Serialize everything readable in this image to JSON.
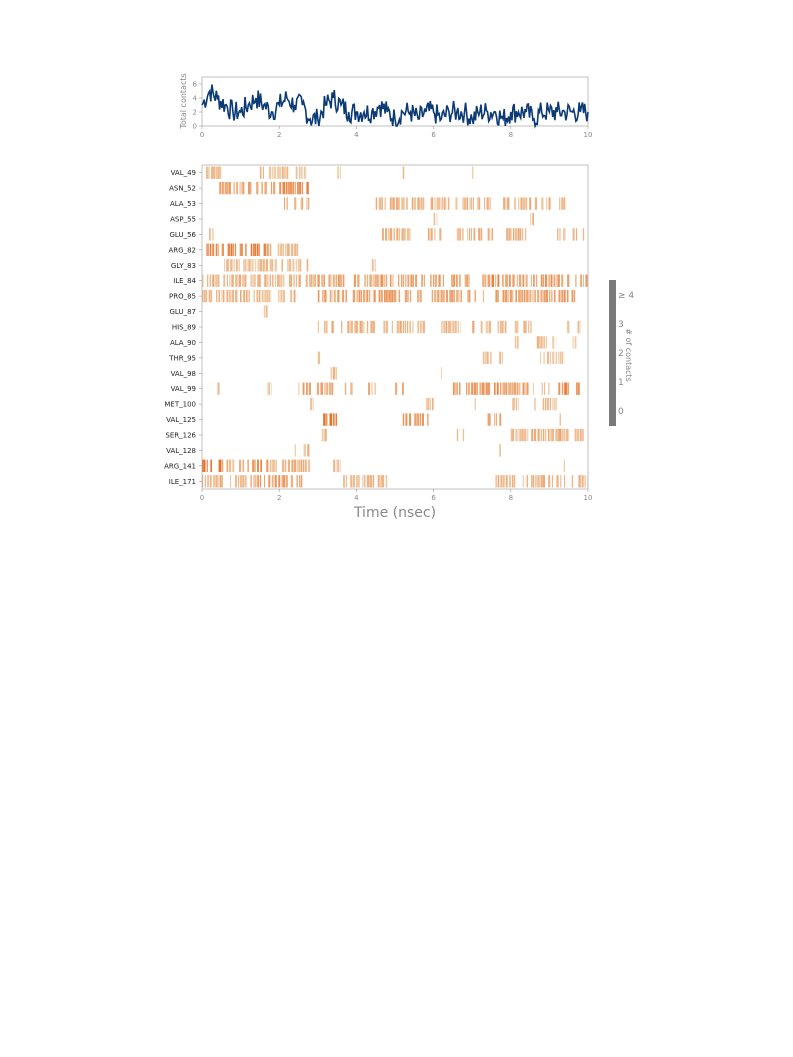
{
  "chart_data": [
    {
      "type": "line",
      "ylabel": "Total contacts",
      "xlim": [
        0,
        10
      ],
      "ylim": [
        0,
        7
      ],
      "xticks": [
        "0",
        "2",
        "4",
        "6",
        "8",
        "10"
      ],
      "yticks": [
        "0",
        "2",
        "4",
        "6"
      ],
      "line_color": "#0b3a75",
      "series": [
        {
          "x": [
            0.0,
            0.2,
            0.4,
            0.6,
            0.8,
            1.0,
            1.2,
            1.4,
            1.6,
            1.8,
            2.0,
            2.2,
            2.4,
            2.6,
            2.8,
            3.0,
            3.2,
            3.4,
            3.6,
            3.8,
            4.0,
            4.2,
            4.4,
            4.6,
            4.8,
            5.0,
            5.2,
            5.4,
            5.6,
            5.8,
            6.0,
            6.2,
            6.4,
            6.6,
            6.8,
            7.0,
            7.2,
            7.4,
            7.6,
            7.8,
            8.0,
            8.2,
            8.4,
            8.6,
            8.8,
            9.0,
            9.2,
            9.4,
            9.6,
            9.8,
            10.0
          ],
          "values": [
            3,
            5,
            4,
            3,
            2,
            2,
            3,
            4,
            3,
            2,
            3,
            4,
            3,
            3,
            1,
            1,
            3,
            4,
            3,
            2,
            2,
            2,
            2,
            3,
            2,
            1,
            2,
            2,
            1,
            2,
            2,
            1,
            2,
            2,
            2,
            1,
            2,
            2,
            2,
            1,
            2,
            2,
            2,
            1,
            2,
            2,
            2,
            2,
            2,
            2,
            2
          ]
        }
      ]
    },
    {
      "type": "heatmap",
      "xlabel": "Time (nsec)",
      "xlim": [
        0,
        10
      ],
      "xticks": [
        "0",
        "2",
        "4",
        "6",
        "8",
        "10"
      ],
      "rows": [
        "VAL_49",
        "ASN_52",
        "ALA_53",
        "ASP_55",
        "GLU_56",
        "ARG_82",
        "GLY_83",
        "ILE_84",
        "PRO_85",
        "GLU_87",
        "HIS_89",
        "ALA_90",
        "THR_95",
        "VAL_98",
        "VAL_99",
        "MET_100",
        "VAL_125",
        "SER_126",
        "VAL_128",
        "ARG_141",
        "ILE_171"
      ],
      "segments": [
        [
          [
            0.1,
            0.5,
            0.3
          ],
          [
            1.5,
            2.7,
            0.2
          ],
          [
            3.5,
            3.6,
            0.2
          ],
          [
            5.2,
            5.3,
            0.2
          ],
          [
            7.0,
            7.1,
            0.2
          ]
        ],
        [
          [
            0.4,
            2.0,
            0.5
          ],
          [
            2.0,
            2.8,
            0.8
          ]
        ],
        [
          [
            2.0,
            2.8,
            0.3
          ],
          [
            4.5,
            7.5,
            0.3
          ],
          [
            7.8,
            9.5,
            0.3
          ]
        ],
        [
          [
            6.0,
            6.1,
            0.2
          ],
          [
            8.5,
            8.6,
            0.2
          ]
        ],
        [
          [
            0.1,
            0.3,
            0.2
          ],
          [
            4.6,
            5.4,
            0.3
          ],
          [
            5.8,
            6.2,
            0.3
          ],
          [
            6.6,
            7.7,
            0.3
          ],
          [
            7.8,
            8.4,
            0.3
          ],
          [
            9.2,
            9.9,
            0.3
          ]
        ],
        [
          [
            0.0,
            1.7,
            0.8
          ],
          [
            1.7,
            2.5,
            0.3
          ]
        ],
        [
          [
            0.5,
            2.8,
            0.2
          ],
          [
            4.4,
            4.5,
            0.2
          ]
        ],
        [
          [
            0.0,
            3.0,
            0.3
          ],
          [
            3.0,
            7.4,
            0.5
          ],
          [
            7.4,
            7.9,
            0.7
          ],
          [
            7.9,
            10.0,
            0.5
          ]
        ],
        [
          [
            0.0,
            2.5,
            0.3
          ],
          [
            3.0,
            4.8,
            0.5
          ],
          [
            4.8,
            7.0,
            0.5
          ],
          [
            7.0,
            7.4,
            0.3
          ],
          [
            7.6,
            9.8,
            0.5
          ]
        ],
        [
          [
            1.6,
            1.7,
            0.2
          ]
        ],
        [
          [
            3.0,
            4.5,
            0.3
          ],
          [
            4.7,
            5.9,
            0.3
          ],
          [
            6.2,
            6.7,
            0.3
          ],
          [
            7.0,
            7.9,
            0.3
          ],
          [
            8.1,
            8.8,
            0.3
          ],
          [
            9.4,
            9.8,
            0.3
          ]
        ],
        [
          [
            8.1,
            8.2,
            0.2
          ],
          [
            8.6,
            9.2,
            0.2
          ],
          [
            9.6,
            9.7,
            0.2
          ]
        ],
        [
          [
            3.0,
            3.1,
            0.2
          ],
          [
            6.7,
            6.8,
            0.2
          ],
          [
            7.2,
            7.5,
            0.2
          ],
          [
            7.7,
            7.8,
            0.2
          ],
          [
            8.7,
            9.4,
            0.2
          ]
        ],
        [
          [
            3.3,
            3.5,
            0.2
          ],
          [
            6.1,
            6.3,
            0.2
          ]
        ],
        [
          [
            0.4,
            0.5,
            0.2
          ],
          [
            1.7,
            1.8,
            0.2
          ],
          [
            2.5,
            3.4,
            0.5
          ],
          [
            3.7,
            3.9,
            0.3
          ],
          [
            4.3,
            4.5,
            0.3
          ],
          [
            5.0,
            5.4,
            0.3
          ],
          [
            6.5,
            7.4,
            0.5
          ],
          [
            7.4,
            7.8,
            0.7
          ],
          [
            7.8,
            8.6,
            0.5
          ],
          [
            8.8,
            9.4,
            0.5
          ],
          [
            9.4,
            9.9,
            0.8
          ]
        ],
        [
          [
            1.6,
            1.7,
            0.2
          ],
          [
            2.8,
            2.9,
            0.2
          ],
          [
            5.8,
            6.0,
            0.2
          ],
          [
            7.0,
            7.1,
            0.2
          ],
          [
            8.0,
            8.2,
            0.2
          ],
          [
            8.6,
            9.2,
            0.2
          ]
        ],
        [
          [
            3.1,
            3.5,
            0.9
          ],
          [
            5.2,
            5.9,
            0.5
          ],
          [
            7.4,
            7.8,
            0.7
          ],
          [
            9.2,
            9.3,
            0.2
          ]
        ],
        [
          [
            3.1,
            3.3,
            0.2
          ],
          [
            6.6,
            6.8,
            0.2
          ],
          [
            8.0,
            9.9,
            0.3
          ]
        ],
        [
          [
            2.4,
            2.8,
            0.2
          ],
          [
            4.3,
            4.4,
            0.2
          ],
          [
            7.7,
            7.8,
            0.2
          ]
        ],
        [
          [
            0.0,
            0.5,
            1.0
          ],
          [
            0.5,
            1.3,
            0.3
          ],
          [
            1.3,
            1.7,
            0.8
          ],
          [
            1.7,
            2.8,
            0.4
          ],
          [
            3.4,
            3.6,
            0.2
          ],
          [
            9.3,
            9.4,
            0.2
          ]
        ],
        [
          [
            0.0,
            1.2,
            0.3
          ],
          [
            1.2,
            2.6,
            0.5
          ],
          [
            3.6,
            4.8,
            0.3
          ],
          [
            7.6,
            10.0,
            0.3
          ]
        ]
      ]
    },
    {
      "type": "colorbar",
      "title": "# of contacts",
      "ticks": [
        "0",
        "1",
        "2",
        "3",
        "≥ 4"
      ]
    }
  ]
}
